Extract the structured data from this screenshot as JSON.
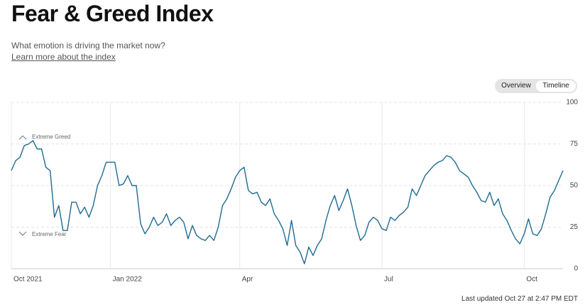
{
  "header": {
    "title": "Fear & Greed Index",
    "subtitle": "What emotion is driving the market now?",
    "link": "Learn more about the index"
  },
  "tabs": [
    "Overview",
    "Timeline"
  ],
  "footer": "Last updated Oct 27 at 2:47 PM EDT",
  "chart_data": {
    "type": "line",
    "categories": [
      "Oct 2021",
      null,
      null,
      null,
      null,
      null,
      null,
      null,
      null,
      null,
      null,
      null,
      null,
      null,
      null,
      null,
      null,
      null,
      null,
      null,
      null,
      null,
      null,
      "Jan 2022",
      null,
      null,
      null,
      null,
      null,
      null,
      null,
      null,
      null,
      null,
      null,
      null,
      null,
      null,
      null,
      null,
      null,
      null,
      null,
      null,
      null,
      null,
      null,
      null,
      null,
      null,
      null,
      null,
      null,
      "Apr",
      null,
      null,
      null,
      null,
      null,
      null,
      null,
      null,
      null,
      null,
      null,
      null,
      null,
      null,
      null,
      null,
      null,
      null,
      null,
      null,
      null,
      null,
      null,
      null,
      null,
      null,
      null,
      null,
      null,
      null,
      null,
      null,
      "Jul",
      null,
      null,
      null,
      null,
      null,
      null,
      null,
      null,
      null,
      null,
      null,
      null,
      null,
      null,
      null,
      null,
      null,
      null,
      null,
      null,
      null,
      null,
      null,
      null,
      null,
      null,
      null,
      null,
      null,
      null,
      null,
      null,
      "Oct",
      null,
      null,
      null,
      null,
      null,
      null,
      null,
      null,
      null
    ],
    "series": [
      {
        "color": "#1f6b92",
        "values": [
          59,
          65,
          67,
          74,
          75,
          77,
          72,
          72,
          61,
          59,
          31,
          38,
          23,
          23,
          40,
          40,
          33,
          37,
          31,
          38,
          50,
          56,
          64,
          64,
          64,
          50,
          51,
          56,
          50,
          50,
          27,
          21,
          25,
          31,
          26,
          28,
          33,
          26,
          29,
          31,
          28,
          18,
          26,
          20,
          18,
          17,
          20,
          17,
          25,
          38,
          42,
          48,
          55,
          59,
          61,
          47,
          45,
          46,
          40,
          38,
          42,
          33,
          29,
          24,
          14,
          29,
          14,
          10,
          3,
          13,
          8,
          14,
          18,
          29,
          38,
          44,
          35,
          41,
          48,
          38,
          26,
          17,
          20,
          28,
          31,
          29,
          24,
          23,
          31,
          29,
          32,
          34,
          37,
          48,
          44,
          50,
          56,
          59,
          62,
          64,
          65,
          68,
          67,
          64,
          59,
          57,
          55,
          50,
          46,
          41,
          40,
          46,
          38,
          42,
          33,
          29,
          23,
          18,
          15,
          21,
          30,
          21,
          20,
          24,
          33,
          43,
          47,
          53,
          59
        ]
      }
    ],
    "ylim": [
      0,
      100
    ],
    "yticks": [
      0,
      25,
      50,
      75,
      100
    ],
    "grid": true,
    "annotations": [
      "Extreme Greed",
      "Extreme Fear"
    ]
  }
}
